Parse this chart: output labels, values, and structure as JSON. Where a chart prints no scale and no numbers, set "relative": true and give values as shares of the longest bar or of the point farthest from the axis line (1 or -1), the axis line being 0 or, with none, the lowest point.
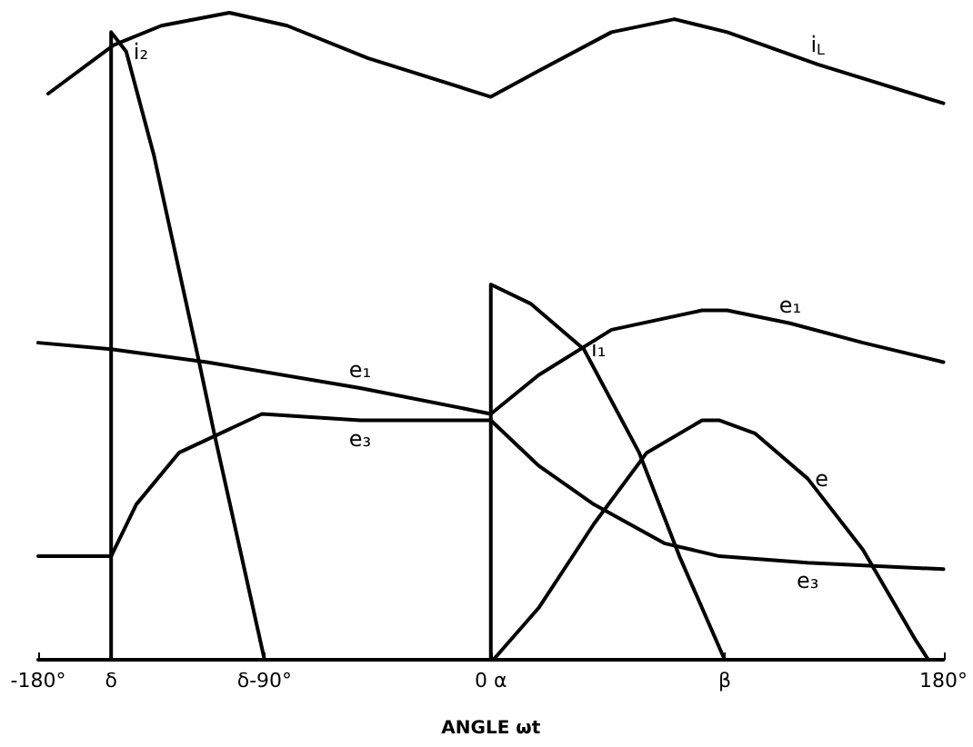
{
  "chart_data": {
    "type": "line",
    "relative": true,
    "xlabel": "ANGLE ωt",
    "xlim": [
      -180,
      180
    ],
    "xticks": [
      {
        "value": -180,
        "label": "-180°"
      },
      {
        "value": -151,
        "label": "δ"
      },
      {
        "value": -90,
        "label": "δ-90°"
      },
      {
        "value": 0,
        "label": "0 α"
      },
      {
        "value": 93,
        "label": "β"
      },
      {
        "value": 180,
        "label": "180°"
      }
    ],
    "tick_labels": "x",
    "grid": false,
    "legend": false,
    "marker": "none",
    "line_style": "solid",
    "series": [
      {
        "name": "i$_{L}$",
        "color": "#000000",
        "x": [
          -176,
          -150,
          -131,
          -104,
          -81,
          -49,
          0,
          19,
          48,
          73,
          94,
          130,
          180
        ],
        "values": [
          0.875,
          0.95,
          0.98,
          1,
          0.98,
          0.93,
          0.87,
          0.91,
          0.97,
          0.99,
          0.97,
          0.92,
          0.86
        ]
      },
      {
        "name": "i₂",
        "color": "#000000",
        "x": [
          -151,
          -151,
          -145,
          -134,
          -116,
          -110,
          -90
        ],
        "values": [
          0,
          0.97,
          0.94,
          0.78,
          0.46,
          0.35,
          0
        ]
      },
      {
        "name": "e₁",
        "color": "#000000",
        "x": [
          -180,
          -151,
          -113,
          -52,
          0,
          19,
          48,
          84,
          94,
          119,
          148,
          180
        ],
        "values": [
          0.49,
          0.48,
          0.46,
          0.42,
          0.38,
          0.44,
          0.51,
          0.54,
          0.54,
          0.52,
          0.49,
          0.46
        ]
      },
      {
        "name": "e₃",
        "color": "#000000",
        "x": [
          -180,
          -151,
          -141,
          -124,
          -91,
          -52,
          0,
          19,
          41,
          69,
          91,
          126,
          180
        ],
        "values": [
          0.16,
          0.16,
          0.24,
          0.32,
          0.38,
          0.37,
          0.37,
          0.3,
          0.24,
          0.18,
          0.16,
          0.15,
          0.14
        ]
      },
      {
        "name": "i₁",
        "color": "#000000",
        "x": [
          0,
          0,
          16,
          37,
          59,
          75,
          93
        ],
        "values": [
          0,
          0.58,
          0.55,
          0.48,
          0.32,
          0.16,
          0
        ]
      },
      {
        "name": "e",
        "color": "#000000",
        "x": [
          1,
          19,
          41,
          62,
          84,
          91,
          105,
          126,
          148,
          169,
          174
        ],
        "values": [
          0,
          0.08,
          0.21,
          0.32,
          0.37,
          0.37,
          0.35,
          0.28,
          0.17,
          0.03,
          0
        ]
      }
    ]
  }
}
